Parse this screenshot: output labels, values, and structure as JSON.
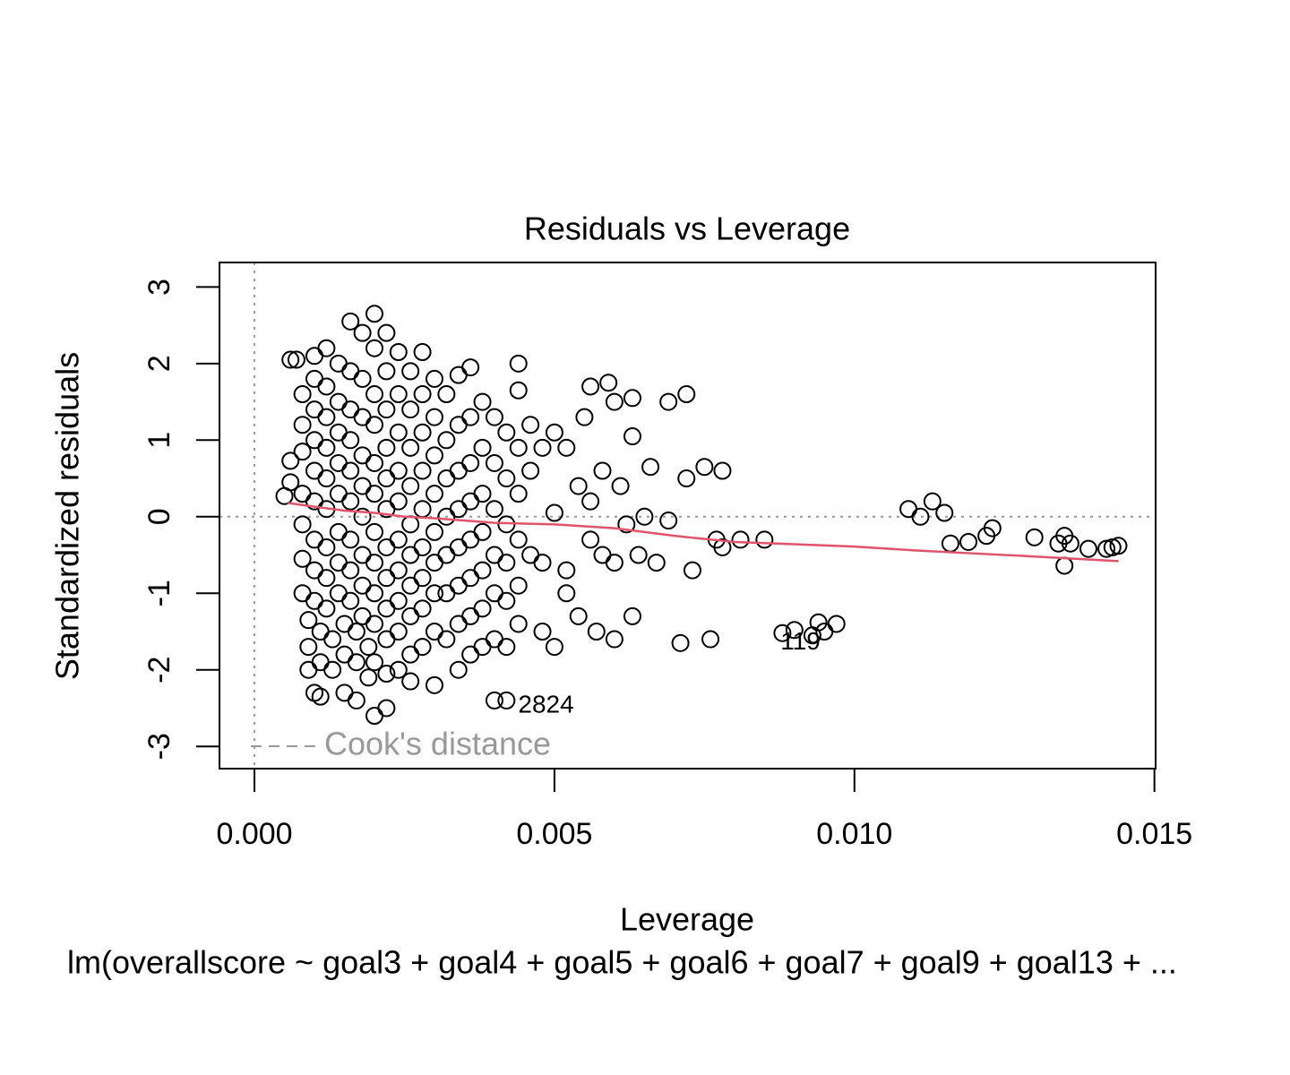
{
  "chart_data": {
    "type": "scatter",
    "title": "Residuals vs Leverage",
    "x_label": "Leverage",
    "y_label": "Standardized residuals",
    "subtitle": "lm(overallscore ~ goal3 + goal4 + goal5 + goal6 + goal7 + goal9 + goal13 +  ...",
    "xlim": [
      -0.000583,
      0.01502
    ],
    "ylim": [
      -3.29,
      3.32
    ],
    "xticks": [
      {
        "value": 0,
        "label": "0.000"
      },
      {
        "value": 0.005,
        "label": "0.005"
      },
      {
        "value": 0.01,
        "label": "0.010"
      },
      {
        "value": 0.015,
        "label": "0.015"
      }
    ],
    "yticks": [
      -3,
      -2,
      -1,
      0,
      1,
      2,
      3
    ],
    "reference_lines": {
      "h": 0,
      "v": 0,
      "color": "#999999"
    },
    "legend": {
      "label": "Cook's distance",
      "corner": "bottomleft",
      "color": "#999999"
    },
    "point_color": "#000000",
    "points": {
      "x": [
        0.0006,
        0.0005,
        0.0006,
        0.0006,
        0.0007,
        0.0008,
        0.0008,
        0.0008,
        0.0008,
        0.0008,
        0.0008,
        0.0008,
        0.0009,
        0.0009,
        0.0009,
        0.001,
        0.001,
        0.001,
        0.001,
        0.001,
        0.001,
        0.001,
        0.001,
        0.001,
        0.001,
        0.0011,
        0.0011,
        0.0011,
        0.0012,
        0.0012,
        0.0012,
        0.0012,
        0.0012,
        0.0012,
        0.0012,
        0.0012,
        0.0012,
        0.0013,
        0.0013,
        0.0014,
        0.0014,
        0.0014,
        0.0014,
        0.0014,
        0.0014,
        0.0014,
        0.0014,
        0.0015,
        0.0015,
        0.0015,
        0.0016,
        0.0016,
        0.0016,
        0.0016,
        0.0016,
        0.0016,
        0.0016,
        0.0016,
        0.0016,
        0.0017,
        0.0017,
        0.0017,
        0.0018,
        0.0018,
        0.0018,
        0.0018,
        0.0018,
        0.0018,
        0.0018,
        0.0018,
        0.0018,
        0.0019,
        0.0019,
        0.002,
        0.002,
        0.002,
        0.002,
        0.002,
        0.002,
        0.002,
        0.002,
        0.002,
        0.002,
        0.002,
        0.002,
        0.0022,
        0.0022,
        0.0022,
        0.0022,
        0.0022,
        0.0022,
        0.0022,
        0.0022,
        0.0022,
        0.0022,
        0.0022,
        0.0022,
        0.0024,
        0.0024,
        0.0024,
        0.0024,
        0.0024,
        0.0024,
        0.0024,
        0.0024,
        0.0024,
        0.0024,
        0.0026,
        0.0026,
        0.0026,
        0.0026,
        0.0026,
        0.0026,
        0.0026,
        0.0026,
        0.0026,
        0.0026,
        0.0028,
        0.0028,
        0.0028,
        0.0028,
        0.0028,
        0.0028,
        0.0028,
        0.0028,
        0.0028,
        0.003,
        0.003,
        0.003,
        0.003,
        0.003,
        0.003,
        0.003,
        0.003,
        0.003,
        0.0032,
        0.0032,
        0.0032,
        0.0032,
        0.0032,
        0.0032,
        0.0032,
        0.0034,
        0.0034,
        0.0034,
        0.0034,
        0.0034,
        0.0034,
        0.0034,
        0.0034,
        0.0036,
        0.0036,
        0.0036,
        0.0036,
        0.0036,
        0.0036,
        0.0036,
        0.0036,
        0.0038,
        0.0038,
        0.0038,
        0.0038,
        0.0038,
        0.0038,
        0.0038,
        0.004,
        0.004,
        0.004,
        0.004,
        0.004,
        0.004,
        0.004,
        0.0042,
        0.0042,
        0.0042,
        0.0042,
        0.0042,
        0.0042,
        0.0042,
        0.0044,
        0.0044,
        0.0044,
        0.0044,
        0.0044,
        0.0044,
        0.0044,
        0.0046,
        0.0046,
        0.0046,
        0.0048,
        0.0048,
        0.0048,
        0.005,
        0.005,
        0.005,
        0.0052,
        0.0052,
        0.0052,
        0.0054,
        0.0054,
        0.0055,
        0.0056,
        0.0056,
        0.0056,
        0.0057,
        0.0058,
        0.0058,
        0.0059,
        0.006,
        0.006,
        0.006,
        0.0061,
        0.0062,
        0.0063,
        0.0063,
        0.0063,
        0.0064,
        0.0065,
        0.0066,
        0.0067,
        0.0069,
        0.0069,
        0.0071,
        0.0072,
        0.0072,
        0.0073,
        0.0075,
        0.0076,
        0.0077,
        0.0078,
        0.0078,
        0.0081,
        0.0085,
        0.0088,
        0.009,
        0.0093,
        0.0094,
        0.0095,
        0.0097,
        0.0109,
        0.0111,
        0.0113,
        0.0115,
        0.0116,
        0.0119,
        0.0122,
        0.0123,
        0.013,
        0.0134,
        0.0135,
        0.0135,
        0.0136,
        0.0139,
        0.0142,
        0.0143,
        0.0144
      ],
      "y": [
        0.45,
        0.27,
        0.73,
        2.05,
        2.05,
        1.6,
        1.2,
        0.85,
        0.3,
        -0.1,
        -0.55,
        -1.0,
        -1.35,
        -1.7,
        -2.0,
        -2.3,
        2.1,
        1.8,
        1.4,
        1.0,
        0.6,
        0.2,
        -0.3,
        -0.7,
        -1.1,
        -1.5,
        -1.9,
        -2.35,
        2.2,
        1.7,
        1.3,
        0.9,
        0.5,
        0.1,
        -0.4,
        -0.8,
        -1.2,
        -1.6,
        -2.0,
        2.0,
        1.5,
        1.1,
        0.7,
        0.3,
        -0.2,
        -0.6,
        -1.0,
        -1.4,
        -1.8,
        -2.3,
        2.55,
        1.9,
        1.4,
        1.0,
        0.6,
        0.2,
        -0.3,
        -0.7,
        -1.1,
        -1.5,
        -1.9,
        -2.4,
        2.4,
        1.8,
        1.3,
        0.8,
        0.4,
        0.0,
        -0.5,
        -0.9,
        -1.3,
        -1.7,
        -2.1,
        2.65,
        2.2,
        1.6,
        1.2,
        0.7,
        0.3,
        -0.2,
        -0.6,
        -1.0,
        -1.4,
        -1.9,
        -2.6,
        2.4,
        1.9,
        1.4,
        0.9,
        0.5,
        0.1,
        -0.4,
        -0.8,
        -1.2,
        -1.6,
        -2.05,
        -2.5,
        2.15,
        1.6,
        1.1,
        0.6,
        0.2,
        -0.3,
        -0.7,
        -1.1,
        -1.5,
        -2.0,
        1.9,
        1.4,
        0.9,
        0.4,
        -0.1,
        -0.5,
        -0.9,
        -1.3,
        -1.8,
        -2.15,
        2.15,
        1.6,
        1.1,
        0.6,
        0.1,
        -0.4,
        -0.8,
        -1.2,
        -1.7,
        1.8,
        1.3,
        0.8,
        0.3,
        -0.2,
        -0.6,
        -1.0,
        -1.5,
        -2.2,
        1.6,
        1.0,
        0.5,
        0.0,
        -0.5,
        -1.0,
        -1.6,
        1.85,
        1.2,
        0.6,
        0.1,
        -0.4,
        -0.9,
        -1.4,
        -2.0,
        1.95,
        1.3,
        0.7,
        0.2,
        -0.3,
        -0.8,
        -1.3,
        -1.8,
        1.5,
        0.9,
        0.3,
        -0.2,
        -0.7,
        -1.2,
        -1.7,
        1.3,
        0.7,
        0.1,
        -0.5,
        -1.0,
        -1.6,
        -2.4,
        1.1,
        0.5,
        -0.1,
        -0.6,
        -1.1,
        -1.7,
        -2.4,
        2.0,
        1.65,
        0.9,
        0.3,
        -0.3,
        -0.9,
        -1.4,
        1.2,
        0.6,
        -0.5,
        0.9,
        -0.6,
        -1.5,
        1.1,
        0.05,
        -1.7,
        0.9,
        -0.7,
        -1.0,
        0.4,
        -1.3,
        1.3,
        1.7,
        0.2,
        -0.3,
        -1.5,
        0.6,
        -0.5,
        1.75,
        1.5,
        -0.6,
        -1.6,
        0.4,
        -0.1,
        1.55,
        1.05,
        -1.3,
        -0.5,
        0.0,
        0.65,
        -0.6,
        1.5,
        -0.05,
        -1.65,
        1.6,
        0.5,
        -0.7,
        0.65,
        -1.6,
        -0.3,
        0.6,
        -0.4,
        -0.3,
        -0.3,
        -1.52,
        -1.48,
        -1.55,
        -1.38,
        -1.5,
        -1.4,
        0.1,
        0.0,
        0.2,
        0.05,
        -0.35,
        -0.33,
        -0.25,
        -0.15,
        -0.27,
        -0.35,
        -0.25,
        -0.64,
        -0.35,
        -0.42,
        -0.42,
        -0.4,
        -0.38
      ]
    },
    "smooth": {
      "color": "#DF536B",
      "x": [
        0.00055,
        0.001,
        0.0015,
        0.002,
        0.0025,
        0.003,
        0.004,
        0.005,
        0.006,
        0.007,
        0.008,
        0.009,
        0.01,
        0.011,
        0.012,
        0.013,
        0.0144
      ],
      "y": [
        0.18,
        0.13,
        0.08,
        0.05,
        0.0,
        -0.02,
        -0.08,
        -0.1,
        -0.15,
        -0.25,
        -0.33,
        -0.36,
        -0.39,
        -0.44,
        -0.48,
        -0.52,
        -0.58
      ]
    },
    "annotations": [
      {
        "text": "2824",
        "x": 0.00486,
        "y": -2.47
      },
      {
        "text": "119",
        "x": 0.0091,
        "y": -1.65
      }
    ]
  }
}
